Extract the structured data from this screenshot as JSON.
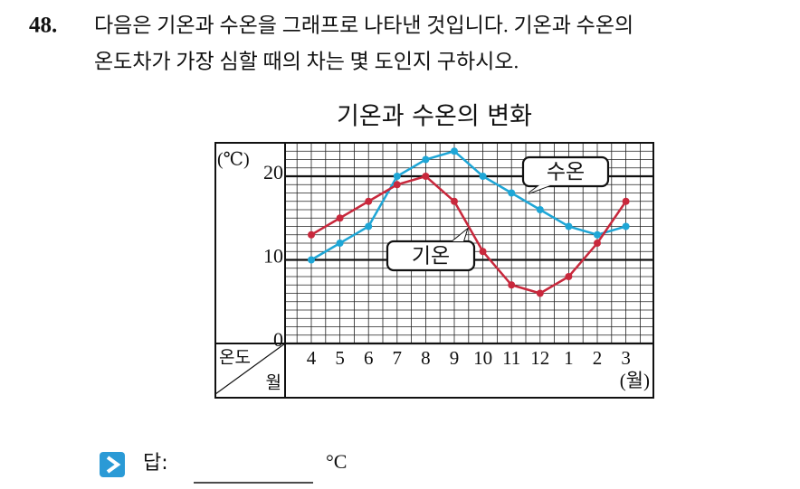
{
  "question": {
    "number": "48.",
    "lines": [
      "다음은 기온과 수온을 그래프로 나타낸 것입니다. 기온과 수온의",
      "온도차가 가장 심할 때의 차는 몇 도인지 구하시오."
    ]
  },
  "chart_data": {
    "type": "line",
    "title": "기온과 수온의 변화",
    "categories": [
      "4",
      "5",
      "6",
      "7",
      "8",
      "9",
      "10",
      "11",
      "12",
      "1",
      "2",
      "3"
    ],
    "x_unit": "(월)",
    "y_unit": "(℃)",
    "corner_top": "온도",
    "corner_bottom": "월",
    "series": [
      {
        "name": "수온",
        "color": "#1ea6d6",
        "values": [
          10,
          12,
          14,
          20,
          22,
          23,
          20,
          18,
          16,
          14,
          13,
          14
        ]
      },
      {
        "name": "기온",
        "color": "#c8283c",
        "values": [
          13,
          15,
          17,
          19,
          20,
          17,
          11,
          7,
          6,
          8,
          12,
          17
        ]
      }
    ],
    "ylim": [
      0,
      24
    ],
    "yticks": [
      0,
      10,
      20
    ],
    "grid": true
  },
  "answer": {
    "label": "답:",
    "unit": "°C"
  }
}
